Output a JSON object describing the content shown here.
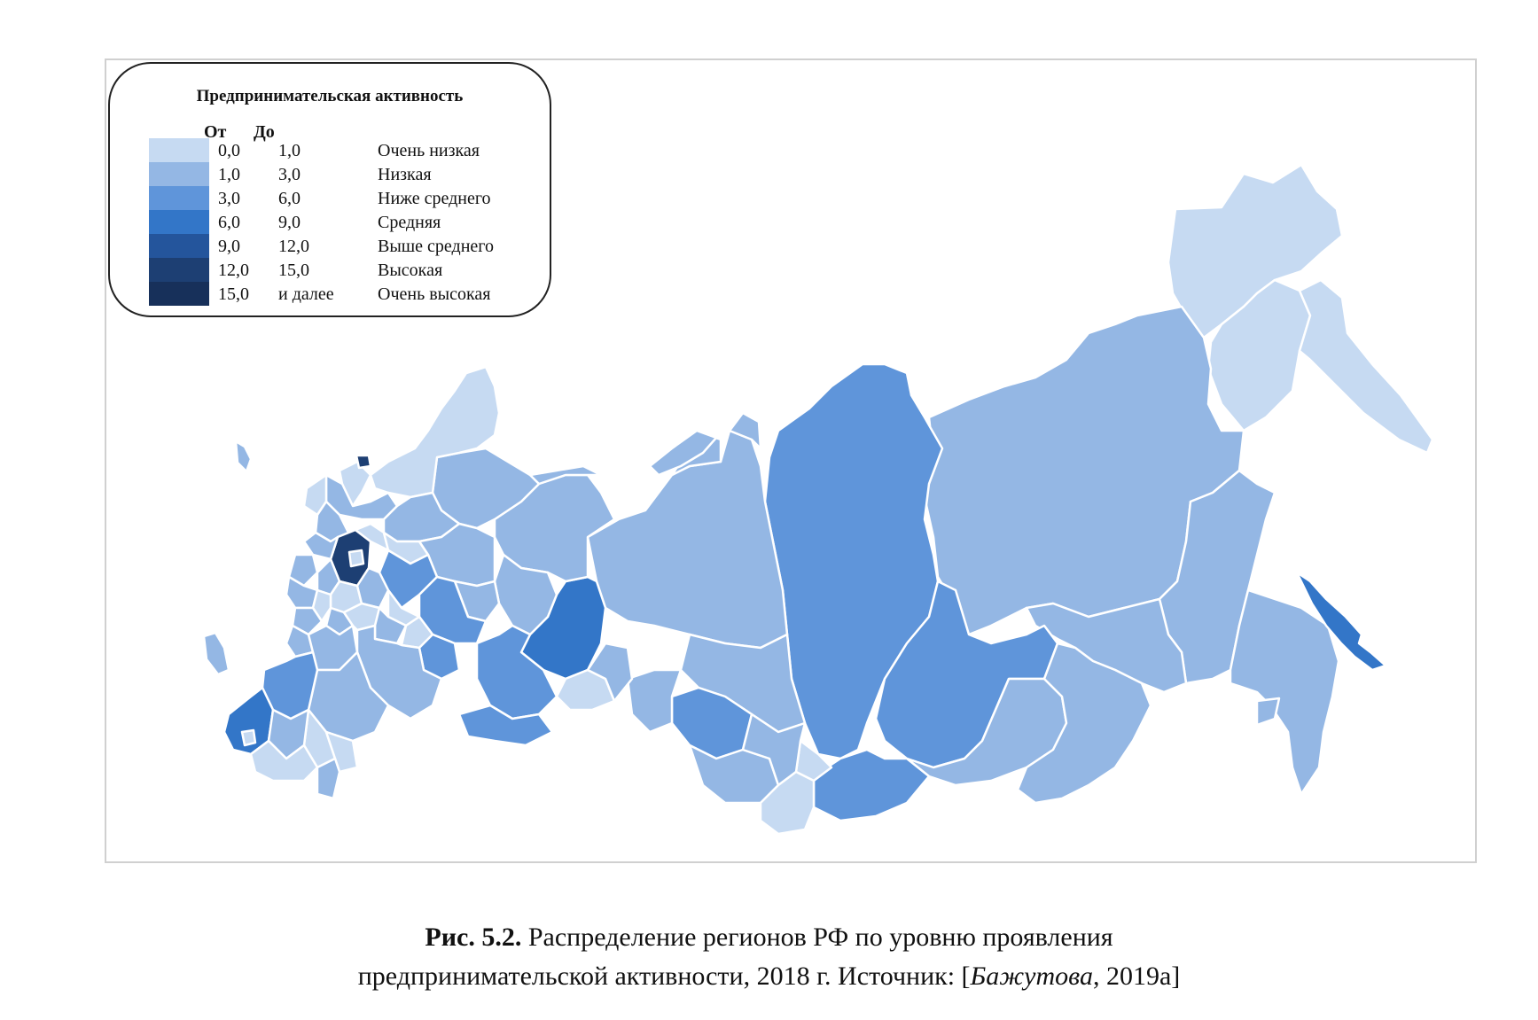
{
  "legend": {
    "title": "Предпринимательская активность",
    "col_from": "От",
    "col_to": "До",
    "rows": [
      {
        "from": "0,0",
        "to": "1,0",
        "label": "Очень низкая",
        "color": "#c6daf2"
      },
      {
        "from": "1,0",
        "to": "3,0",
        "label": "Низкая",
        "color": "#94b7e4"
      },
      {
        "from": "3,0",
        "to": "6,0",
        "label": "Ниже среднего",
        "color": "#5f95da"
      },
      {
        "from": "6,0",
        "to": "9,0",
        "label": "Средняя",
        "color": "#3376c8"
      },
      {
        "from": "9,0",
        "to": "12,0",
        "label": "Выше среднего",
        "color": "#24559c"
      },
      {
        "from": "12,0",
        "to": "15,0",
        "label": "Высокая",
        "color": "#1d3f73"
      },
      {
        "from": "15,0",
        "to": "и далее",
        "label": "Очень высокая",
        "color": "#17305a"
      }
    ]
  },
  "caption": {
    "label": "Рис. 5.2.",
    "line1": " Распределение регионов РФ по уровню проявления",
    "line2_a": "предпринимательской активности, 2018 г. Источник: [",
    "line2_author": "Бажутова",
    "line2_b": ", 2019а]"
  },
  "map": {
    "regions": [
      {
        "name": "chukotka",
        "level": 0
      },
      {
        "name": "magadan",
        "level": 0
      },
      {
        "name": "kamchatka",
        "level": 0
      },
      {
        "name": "sakha-yakutia",
        "level": 1
      },
      {
        "name": "khabarovsk",
        "level": 1
      },
      {
        "name": "krasnoyarsk",
        "level": 2
      },
      {
        "name": "irkutsk",
        "level": 2
      },
      {
        "name": "zabaykalsky",
        "level": 1
      },
      {
        "name": "amur",
        "level": 1
      },
      {
        "name": "primorsky",
        "level": 1
      },
      {
        "name": "sakhalin",
        "level": 3
      },
      {
        "name": "buryatia",
        "level": 1
      },
      {
        "name": "tyumen-yamal",
        "level": 1
      },
      {
        "name": "sverdlovsk",
        "level": 3
      },
      {
        "name": "tomsk",
        "level": 1
      },
      {
        "name": "novosibirsk",
        "level": 2
      },
      {
        "name": "altai",
        "level": 0
      },
      {
        "name": "tuva",
        "level": 2
      },
      {
        "name": "komi",
        "level": 1
      },
      {
        "name": "arkhangelsk",
        "level": 1
      },
      {
        "name": "karelia",
        "level": 0
      },
      {
        "name": "moscow-region",
        "level": 5
      },
      {
        "name": "moscow",
        "level": 0
      },
      {
        "name": "saint-petersburg",
        "level": 5
      },
      {
        "name": "krasnodar",
        "level": 3
      },
      {
        "name": "rostov",
        "level": 2
      },
      {
        "name": "tatarstan",
        "level": 2
      },
      {
        "name": "bashkortostan",
        "level": 2
      },
      {
        "name": "nizhny-novgorod",
        "level": 2
      },
      {
        "name": "chelyabinsk",
        "level": 0
      },
      {
        "name": "kemerovo",
        "level": 1
      },
      {
        "name": "kaliningrad",
        "level": 1
      },
      {
        "name": "crimea",
        "level": 1
      },
      {
        "name": "central-misc",
        "level": 1
      }
    ]
  }
}
